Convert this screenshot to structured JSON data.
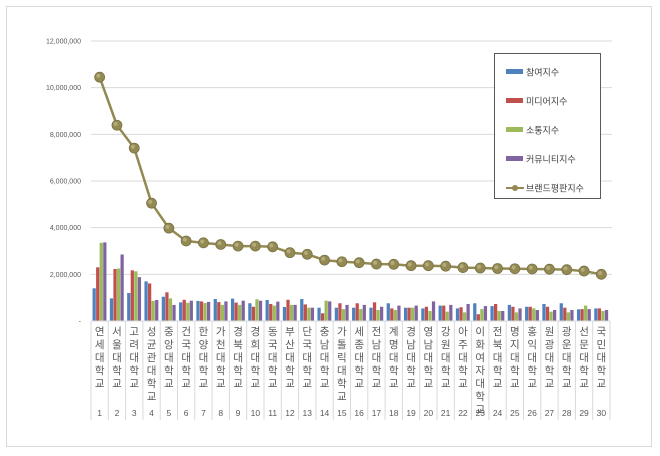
{
  "chart_data": {
    "type": "bar",
    "combo": "clustered bars + line",
    "title": "",
    "xlabel": "",
    "ylabel": "",
    "ylim": [
      0,
      12000000
    ],
    "y_ticks": [
      {
        "value": 0,
        "label": "-"
      },
      {
        "value": 2000000,
        "label": "2,000,000"
      },
      {
        "value": 4000000,
        "label": "4,000,000"
      },
      {
        "value": 6000000,
        "label": "6,000,000"
      },
      {
        "value": 8000000,
        "label": "8,000,000"
      },
      {
        "value": 10000000,
        "label": "10,000,000"
      },
      {
        "value": 12000000,
        "label": "12,000,000"
      }
    ],
    "grid": true,
    "legend_position": "upper-right-inside",
    "categories": [
      {
        "rank": "1",
        "name": "연세대학교"
      },
      {
        "rank": "2",
        "name": "서울대학교"
      },
      {
        "rank": "3",
        "name": "고려대학교"
      },
      {
        "rank": "4",
        "name": "성균관대학교"
      },
      {
        "rank": "5",
        "name": "중앙대학교"
      },
      {
        "rank": "6",
        "name": "건국대학교"
      },
      {
        "rank": "7",
        "name": "한양대학교"
      },
      {
        "rank": "8",
        "name": "가천대학교"
      },
      {
        "rank": "9",
        "name": "경북대학교"
      },
      {
        "rank": "10",
        "name": "경희대학교"
      },
      {
        "rank": "11",
        "name": "동국대학교"
      },
      {
        "rank": "12",
        "name": "부산대학교"
      },
      {
        "rank": "13",
        "name": "단국대학교"
      },
      {
        "rank": "14",
        "name": "충남대학교"
      },
      {
        "rank": "15",
        "name": "가톨릭대학교"
      },
      {
        "rank": "16",
        "name": "세종대학교"
      },
      {
        "rank": "17",
        "name": "전남대학교"
      },
      {
        "rank": "18",
        "name": "계명대학교"
      },
      {
        "rank": "19",
        "name": "경남대학교"
      },
      {
        "rank": "20",
        "name": "영남대학교"
      },
      {
        "rank": "21",
        "name": "강원대학교"
      },
      {
        "rank": "22",
        "name": "아주대학교"
      },
      {
        "rank": "23",
        "name": "이화여자대학교"
      },
      {
        "rank": "24",
        "name": "전북대학교"
      },
      {
        "rank": "25",
        "name": "명지대학교"
      },
      {
        "rank": "26",
        "name": "홍익대학교"
      },
      {
        "rank": "27",
        "name": "원광대학교"
      },
      {
        "rank": "28",
        "name": "광운대학교"
      },
      {
        "rank": "29",
        "name": "선문대학교"
      },
      {
        "rank": "30",
        "name": "국민대학교"
      }
    ],
    "series": [
      {
        "name": "참여지수",
        "kind": "bar",
        "color": "#4f81bd",
        "values": [
          1400000,
          970000,
          1200000,
          1700000,
          1040000,
          800000,
          860000,
          940000,
          960000,
          760000,
          900000,
          600000,
          940000,
          570000,
          570000,
          570000,
          570000,
          760000,
          570000,
          540000,
          660000,
          540000,
          760000,
          640000,
          690000,
          610000,
          730000,
          760000,
          500000,
          540000
        ]
      },
      {
        "name": "미디어지수",
        "kind": "bar",
        "color": "#c0504d",
        "values": [
          2300000,
          2230000,
          2170000,
          1610000,
          1230000,
          910000,
          840000,
          810000,
          790000,
          610000,
          730000,
          910000,
          710000,
          330000,
          760000,
          760000,
          800000,
          540000,
          570000,
          610000,
          660000,
          590000,
          290000,
          730000,
          610000,
          610000,
          610000,
          570000,
          510000,
          540000
        ]
      },
      {
        "name": "소통지수",
        "kind": "bar",
        "color": "#9bbb59",
        "values": [
          3350000,
          2250000,
          2130000,
          860000,
          970000,
          780000,
          770000,
          690000,
          690000,
          930000,
          660000,
          690000,
          570000,
          870000,
          510000,
          510000,
          470000,
          470000,
          570000,
          430000,
          400000,
          370000,
          510000,
          430000,
          370000,
          540000,
          400000,
          370000,
          660000,
          430000
        ]
      },
      {
        "name": "커뮤니티지수",
        "kind": "bar",
        "color": "#8064a2",
        "values": [
          3370000,
          2850000,
          1880000,
          900000,
          690000,
          870000,
          820000,
          840000,
          870000,
          870000,
          830000,
          690000,
          570000,
          840000,
          690000,
          690000,
          610000,
          660000,
          660000,
          840000,
          690000,
          730000,
          640000,
          430000,
          540000,
          470000,
          470000,
          470000,
          510000,
          470000
        ]
      },
      {
        "name": "브랜드평판지수",
        "kind": "line",
        "color": "#938953",
        "values": [
          10450000,
          8390000,
          7410000,
          5050000,
          3980000,
          3430000,
          3350000,
          3280000,
          3210000,
          3210000,
          3180000,
          2930000,
          2860000,
          2610000,
          2540000,
          2500000,
          2440000,
          2430000,
          2370000,
          2370000,
          2350000,
          2290000,
          2270000,
          2250000,
          2240000,
          2230000,
          2220000,
          2200000,
          2140000,
          2000000
        ]
      }
    ]
  },
  "legend": {
    "items": [
      {
        "label": "참여지수",
        "color": "#4f81bd",
        "kind": "bar"
      },
      {
        "label": "미디어지수",
        "color": "#c0504d",
        "kind": "bar"
      },
      {
        "label": "소통지수",
        "color": "#9bbb59",
        "kind": "bar"
      },
      {
        "label": "커뮤니티지수",
        "color": "#8064a2",
        "kind": "bar"
      },
      {
        "label": "브랜드평판지수",
        "color": "#938953",
        "kind": "line"
      }
    ]
  },
  "style": {
    "gridline_color": "#d9d9d9",
    "axis_text_color": "#595959",
    "border_color": "#d9d9d9"
  }
}
